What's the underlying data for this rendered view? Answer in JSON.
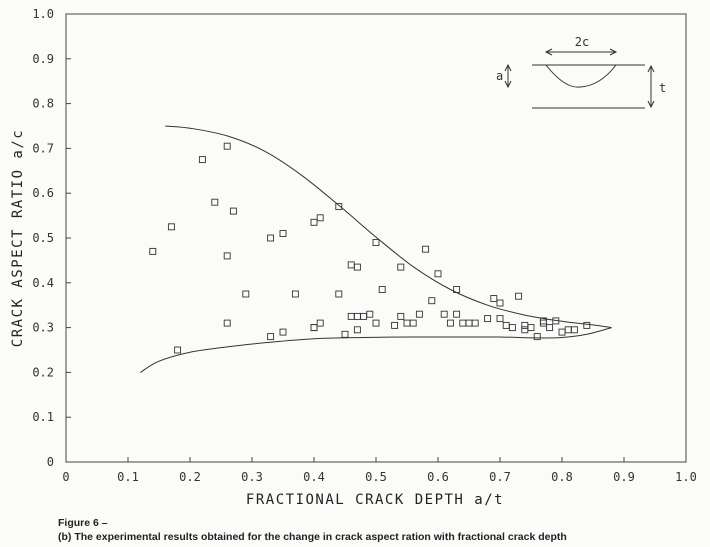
{
  "chart_data": {
    "type": "scatter",
    "xlabel": "FRACTIONAL CRACK DEPTH a/t",
    "ylabel": "CRACK ASPECT RATIO a/c",
    "xlim": [
      0,
      1.0
    ],
    "ylim": [
      0,
      1.0
    ],
    "x_ticks": [
      "0",
      "0.1",
      "0.2",
      "0.3",
      "0.4",
      "0.5",
      "0.6",
      "0.7",
      "0.8",
      "0.9",
      "1.0"
    ],
    "y_ticks": [
      "0",
      "0.1",
      "0.2",
      "0.3",
      "0.4",
      "0.5",
      "0.6",
      "0.7",
      "0.8",
      "0.9",
      "1.0"
    ],
    "grid": false,
    "marker": "open-square",
    "points": [
      [
        0.14,
        0.47
      ],
      [
        0.17,
        0.525
      ],
      [
        0.18,
        0.25
      ],
      [
        0.22,
        0.675
      ],
      [
        0.24,
        0.58
      ],
      [
        0.26,
        0.705
      ],
      [
        0.26,
        0.46
      ],
      [
        0.26,
        0.31
      ],
      [
        0.27,
        0.56
      ],
      [
        0.29,
        0.375
      ],
      [
        0.33,
        0.5
      ],
      [
        0.33,
        0.28
      ],
      [
        0.35,
        0.51
      ],
      [
        0.35,
        0.29
      ],
      [
        0.37,
        0.375
      ],
      [
        0.4,
        0.535
      ],
      [
        0.4,
        0.3
      ],
      [
        0.4,
        0.3
      ],
      [
        0.41,
        0.545
      ],
      [
        0.41,
        0.31
      ],
      [
        0.44,
        0.57
      ],
      [
        0.44,
        0.375
      ],
      [
        0.45,
        0.285
      ],
      [
        0.46,
        0.44
      ],
      [
        0.46,
        0.325
      ],
      [
        0.47,
        0.435
      ],
      [
        0.47,
        0.325
      ],
      [
        0.47,
        0.295
      ],
      [
        0.48,
        0.325
      ],
      [
        0.49,
        0.33
      ],
      [
        0.5,
        0.49
      ],
      [
        0.5,
        0.31
      ],
      [
        0.51,
        0.385
      ],
      [
        0.53,
        0.305
      ],
      [
        0.54,
        0.435
      ],
      [
        0.54,
        0.325
      ],
      [
        0.55,
        0.31
      ],
      [
        0.56,
        0.31
      ],
      [
        0.57,
        0.33
      ],
      [
        0.58,
        0.475
      ],
      [
        0.59,
        0.36
      ],
      [
        0.6,
        0.42
      ],
      [
        0.61,
        0.33
      ],
      [
        0.62,
        0.31
      ],
      [
        0.63,
        0.385
      ],
      [
        0.63,
        0.33
      ],
      [
        0.64,
        0.31
      ],
      [
        0.65,
        0.31
      ],
      [
        0.66,
        0.31
      ],
      [
        0.68,
        0.32
      ],
      [
        0.69,
        0.365
      ],
      [
        0.7,
        0.355
      ],
      [
        0.7,
        0.32
      ],
      [
        0.71,
        0.305
      ],
      [
        0.72,
        0.3
      ],
      [
        0.73,
        0.37
      ],
      [
        0.74,
        0.305
      ],
      [
        0.74,
        0.295
      ],
      [
        0.75,
        0.3
      ],
      [
        0.76,
        0.28
      ],
      [
        0.77,
        0.31
      ],
      [
        0.77,
        0.315
      ],
      [
        0.78,
        0.3
      ],
      [
        0.79,
        0.315
      ],
      [
        0.8,
        0.29
      ],
      [
        0.81,
        0.295
      ],
      [
        0.82,
        0.295
      ],
      [
        0.84,
        0.305
      ]
    ],
    "envelope_upper": [
      [
        0.16,
        0.75
      ],
      [
        0.2,
        0.745
      ],
      [
        0.26,
        0.728
      ],
      [
        0.32,
        0.694
      ],
      [
        0.38,
        0.64
      ],
      [
        0.44,
        0.573
      ],
      [
        0.5,
        0.502
      ],
      [
        0.56,
        0.436
      ],
      [
        0.62,
        0.385
      ],
      [
        0.68,
        0.35
      ],
      [
        0.74,
        0.328
      ],
      [
        0.8,
        0.314
      ],
      [
        0.85,
        0.306
      ],
      [
        0.88,
        0.3
      ]
    ],
    "envelope_lower": [
      [
        0.12,
        0.2
      ],
      [
        0.15,
        0.225
      ],
      [
        0.2,
        0.245
      ],
      [
        0.26,
        0.257
      ],
      [
        0.32,
        0.266
      ],
      [
        0.4,
        0.275
      ],
      [
        0.48,
        0.278
      ],
      [
        0.56,
        0.279
      ],
      [
        0.64,
        0.279
      ],
      [
        0.7,
        0.279
      ],
      [
        0.76,
        0.277
      ],
      [
        0.8,
        0.278
      ],
      [
        0.84,
        0.285
      ],
      [
        0.88,
        0.3
      ]
    ],
    "inset": {
      "labels": {
        "width": "2c",
        "depth": "a",
        "thickness": "t"
      }
    }
  },
  "caption": {
    "figure": "Figure 6 –",
    "text": "(b) The experimental results obtained for the change in crack aspect ration with fractional crack depth"
  }
}
